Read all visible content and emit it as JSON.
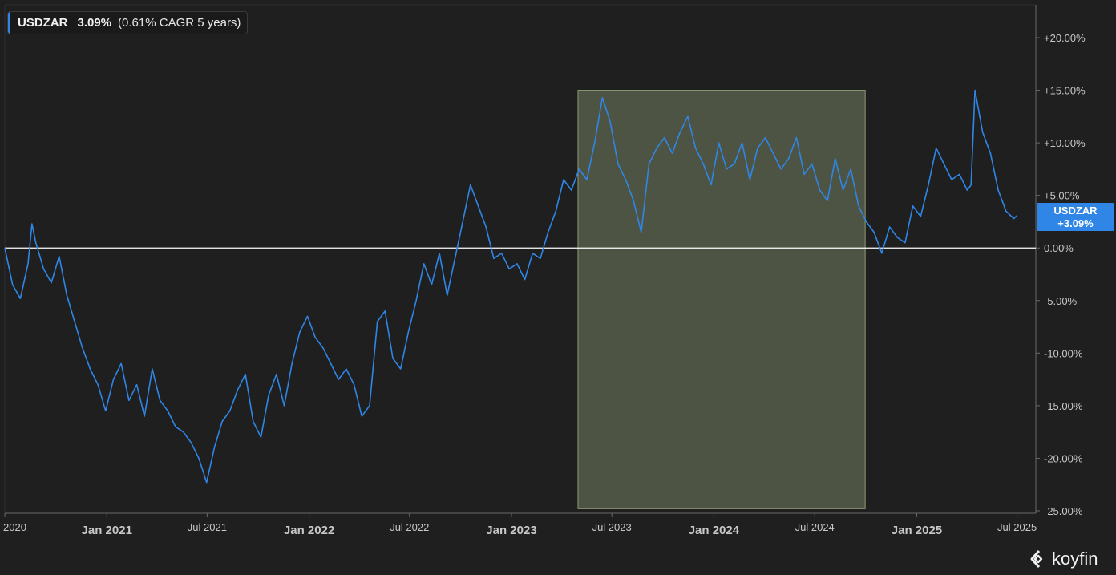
{
  "legend": {
    "symbol": "USDZAR",
    "change": "3.09%",
    "cagr_note": "(0.61% CAGR 5 years)"
  },
  "last_value_tag": {
    "symbol": "USDZAR",
    "value": "+3.09%"
  },
  "watermark": "koyfin",
  "colors": {
    "background": "#1f1f1f",
    "line": "#2f86e6",
    "zero_line": "#ffffff",
    "highlight": "#4e5443",
    "highlight_border": "#8f9a78",
    "axis_text": "#c8c8c8"
  },
  "chart_data": {
    "type": "line",
    "title": "",
    "xlabel": "",
    "ylabel": "",
    "x_ticks": [
      "2020",
      "Jan 2021",
      "Jul 2021",
      "Jan 2022",
      "Jul 2022",
      "Jan 2023",
      "Jul 2023",
      "Jan 2024",
      "Jul 2024",
      "Jan 2025",
      "Jul 2025"
    ],
    "y_ticks": [
      "+20.00%",
      "+15.00%",
      "+10.00%",
      "+5.00%",
      "0.00%",
      "-5.00%",
      "-10.00%",
      "-15.00%",
      "-20.00%",
      "-25.00%"
    ],
    "xlim": [
      "2020-07-01",
      "2025-07-03"
    ],
    "ylim": [
      -25,
      23
    ],
    "reference_line": 0,
    "highlight_range": {
      "x": [
        "2023-05-01",
        "2024-09-30"
      ],
      "y": [
        -24.8,
        15
      ]
    },
    "series": [
      {
        "name": "USDZAR",
        "x": [
          "2020-07-01",
          "2020-07-15",
          "2020-07-29",
          "2020-08-12",
          "2020-08-19",
          "2020-08-26",
          "2020-09-09",
          "2020-09-23",
          "2020-10-07",
          "2020-10-21",
          "2020-11-04",
          "2020-11-18",
          "2020-12-02",
          "2020-12-16",
          "2020-12-30",
          "2021-01-13",
          "2021-01-27",
          "2021-02-10",
          "2021-02-24",
          "2021-03-10",
          "2021-03-24",
          "2021-04-07",
          "2021-04-21",
          "2021-05-05",
          "2021-05-19",
          "2021-06-02",
          "2021-06-16",
          "2021-06-30",
          "2021-07-14",
          "2021-07-28",
          "2021-08-11",
          "2021-08-25",
          "2021-09-08",
          "2021-09-22",
          "2021-10-06",
          "2021-10-20",
          "2021-11-03",
          "2021-11-17",
          "2021-12-01",
          "2021-12-15",
          "2021-12-29",
          "2022-01-12",
          "2022-01-26",
          "2022-02-09",
          "2022-02-23",
          "2022-03-09",
          "2022-03-23",
          "2022-04-06",
          "2022-04-20",
          "2022-05-04",
          "2022-05-18",
          "2022-06-01",
          "2022-06-15",
          "2022-06-29",
          "2022-07-13",
          "2022-07-27",
          "2022-08-10",
          "2022-08-24",
          "2022-09-07",
          "2022-09-21",
          "2022-10-05",
          "2022-10-19",
          "2022-11-02",
          "2022-11-16",
          "2022-11-30",
          "2022-12-14",
          "2022-12-28",
          "2023-01-11",
          "2023-01-25",
          "2023-02-08",
          "2023-02-22",
          "2023-03-08",
          "2023-03-22",
          "2023-04-05",
          "2023-04-19",
          "2023-05-03",
          "2023-05-17",
          "2023-05-31",
          "2023-06-14",
          "2023-06-28",
          "2023-07-12",
          "2023-07-26",
          "2023-08-09",
          "2023-08-23",
          "2023-09-06",
          "2023-09-20",
          "2023-10-04",
          "2023-10-18",
          "2023-11-01",
          "2023-11-15",
          "2023-11-29",
          "2023-12-13",
          "2023-12-27",
          "2024-01-10",
          "2024-01-24",
          "2024-02-07",
          "2024-02-21",
          "2024-03-06",
          "2024-03-20",
          "2024-04-03",
          "2024-04-17",
          "2024-05-01",
          "2024-05-15",
          "2024-05-29",
          "2024-06-12",
          "2024-06-26",
          "2024-07-10",
          "2024-07-24",
          "2024-08-07",
          "2024-08-21",
          "2024-09-04",
          "2024-09-18",
          "2024-10-02",
          "2024-10-16",
          "2024-10-30",
          "2024-11-13",
          "2024-11-27",
          "2024-12-11",
          "2024-12-25",
          "2025-01-08",
          "2025-01-22",
          "2025-02-05",
          "2025-02-19",
          "2025-03-05",
          "2025-03-19",
          "2025-04-02",
          "2025-04-09",
          "2025-04-16",
          "2025-04-30",
          "2025-05-14",
          "2025-05-28",
          "2025-06-11",
          "2025-06-25",
          "2025-07-01"
        ],
        "values": [
          0.0,
          -3.5,
          -4.8,
          -1.5,
          2.3,
          0.5,
          -2.0,
          -3.3,
          -0.8,
          -4.5,
          -7.0,
          -9.5,
          -11.5,
          -13.0,
          -15.5,
          -12.5,
          -11.0,
          -14.5,
          -13.0,
          -16.0,
          -11.5,
          -14.5,
          -15.5,
          -17.0,
          -17.5,
          -18.5,
          -20.0,
          -22.3,
          -19.0,
          -16.5,
          -15.5,
          -13.5,
          -12.0,
          -16.5,
          -18.0,
          -14.0,
          -12.0,
          -15.0,
          -11.0,
          -8.0,
          -6.5,
          -8.5,
          -9.5,
          -11.0,
          -12.5,
          -11.5,
          -13.0,
          -16.0,
          -15.0,
          -7.0,
          -6.0,
          -10.5,
          -11.5,
          -8.0,
          -5.0,
          -1.5,
          -3.5,
          -0.5,
          -4.5,
          -1.0,
          2.5,
          6.0,
          4.0,
          2.0,
          -1.0,
          -0.5,
          -2.0,
          -1.5,
          -3.0,
          -0.5,
          -1.0,
          1.5,
          3.5,
          6.5,
          5.5,
          7.5,
          6.5,
          10.0,
          14.3,
          12.0,
          8.0,
          6.5,
          4.5,
          1.5,
          8.0,
          9.5,
          10.5,
          9.0,
          11.0,
          12.5,
          9.5,
          8.0,
          6.0,
          10.0,
          7.5,
          8.0,
          10.0,
          6.5,
          9.5,
          10.5,
          9.0,
          7.5,
          8.5,
          10.5,
          7.0,
          8.0,
          5.5,
          4.5,
          8.5,
          5.5,
          7.5,
          4.0,
          2.5,
          1.5,
          -0.5,
          2.0,
          1.0,
          0.5,
          4.0,
          3.0,
          6.0,
          9.5,
          8.0,
          6.5,
          7.0,
          5.5,
          6.0,
          15.0,
          11.0,
          9.0,
          5.5,
          3.5,
          2.8,
          3.09
        ]
      }
    ]
  }
}
